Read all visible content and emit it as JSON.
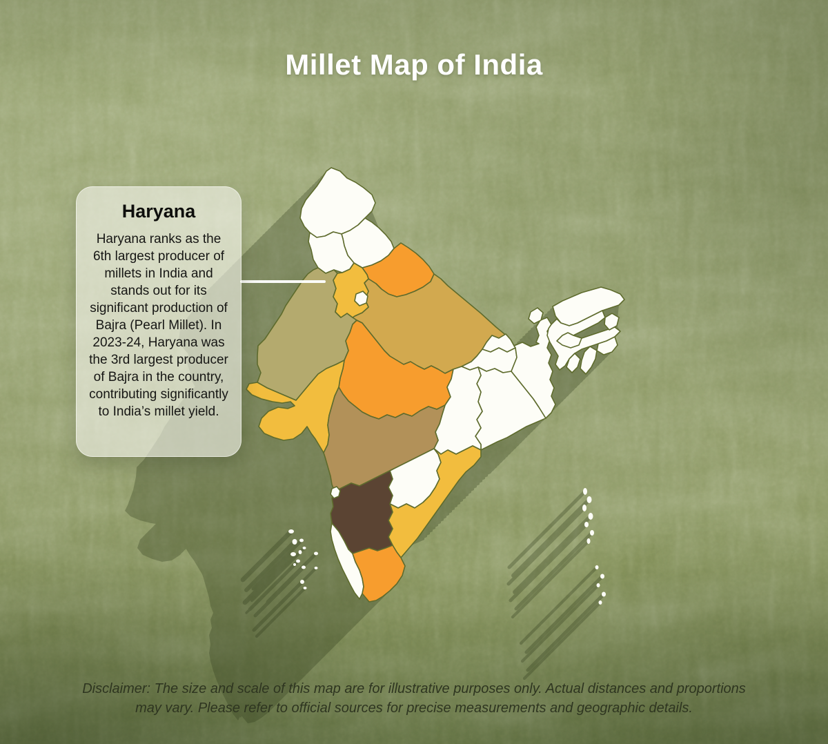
{
  "poster": {
    "title": "Millet Map of India",
    "disclaimer": "Disclaimer: The size and scale of this map are for illustrative purposes only. Actual distances and proportions may vary. Please refer to official sources for precise measurements and geographic details."
  },
  "tooltip": {
    "state": "Haryana",
    "body": "Haryana ranks as the 6th largest producer of millets in India and stands out for its significant production of Bajra (Pearl Millet). In 2023-24, Haryana was the 3rd largest producer of Bajra in the country, contributing significantly to India’s millet yield."
  },
  "map": {
    "palette": {
      "white": "#fdfdf7",
      "yellow": "#f2bd3e",
      "orange": "#f79d2e",
      "olive": "#b4aa6e",
      "mustard": "#d2a94f",
      "tan": "#b29159",
      "brown": "#5b4433",
      "border": "#5e6b2d",
      "shadow": "#2e3a1a"
    },
    "states": [
      {
        "id": "jammu-kashmir",
        "name": "Jammu & Kashmir / Ladakh",
        "color": "white"
      },
      {
        "id": "himachal-pradesh",
        "name": "Himachal Pradesh",
        "color": "white"
      },
      {
        "id": "punjab",
        "name": "Punjab",
        "color": "white"
      },
      {
        "id": "uttarakhand",
        "name": "Uttarakhand",
        "color": "orange"
      },
      {
        "id": "uttar-pradesh",
        "name": "Uttar Pradesh",
        "color": "mustard"
      },
      {
        "id": "rajasthan",
        "name": "Rajasthan",
        "color": "olive"
      },
      {
        "id": "madhya-pradesh",
        "name": "Madhya Pradesh",
        "color": "orange"
      },
      {
        "id": "gujarat",
        "name": "Gujarat",
        "color": "yellow"
      },
      {
        "id": "bihar",
        "name": "Bihar",
        "color": "white"
      },
      {
        "id": "jharkhand",
        "name": "Jharkhand",
        "color": "white"
      },
      {
        "id": "odisha",
        "name": "Odisha",
        "color": "white"
      },
      {
        "id": "west-bengal",
        "name": "West Bengal",
        "color": "white"
      },
      {
        "id": "sikkim",
        "name": "Sikkim",
        "color": "white"
      },
      {
        "id": "arunachal-pradesh",
        "name": "Arunachal Pradesh",
        "color": "white"
      },
      {
        "id": "assam",
        "name": "Assam",
        "color": "white"
      },
      {
        "id": "meghalaya",
        "name": "Meghalaya",
        "color": "white"
      },
      {
        "id": "nagaland",
        "name": "Nagaland",
        "color": "white"
      },
      {
        "id": "manipur",
        "name": "Manipur",
        "color": "white"
      },
      {
        "id": "mizoram",
        "name": "Mizoram",
        "color": "white"
      },
      {
        "id": "tripura",
        "name": "Tripura",
        "color": "white"
      },
      {
        "id": "chhattisgarh",
        "name": "Chhattisgarh",
        "color": "white"
      },
      {
        "id": "maharashtra",
        "name": "Maharashtra",
        "color": "tan"
      },
      {
        "id": "telangana",
        "name": "Telangana",
        "color": "white"
      },
      {
        "id": "andhra-pradesh",
        "name": "Andhra Pradesh",
        "color": "yellow"
      },
      {
        "id": "karnataka",
        "name": "Karnataka",
        "color": "brown"
      },
      {
        "id": "goa",
        "name": "Goa",
        "color": "white"
      },
      {
        "id": "kerala",
        "name": "Kerala",
        "color": "white"
      },
      {
        "id": "tamil-nadu",
        "name": "Tamil Nadu",
        "color": "orange"
      },
      {
        "id": "haryana",
        "name": "Haryana",
        "color": "yellow"
      },
      {
        "id": "delhi",
        "name": "Delhi",
        "color": "white"
      },
      {
        "id": "lakshadweep",
        "name": "Lakshadweep",
        "color": "white"
      },
      {
        "id": "andaman-nicobar",
        "name": "Andaman & Nicobar Islands",
        "color": "white"
      }
    ]
  },
  "background": {
    "base": "#8f9b68"
  }
}
